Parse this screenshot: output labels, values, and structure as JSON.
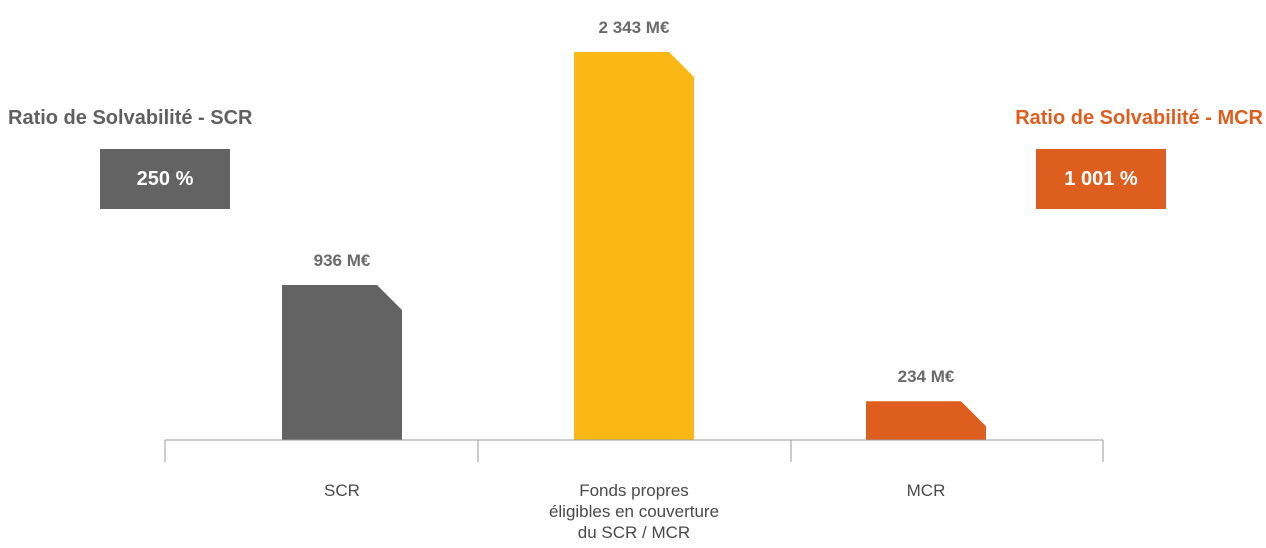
{
  "chart_data": {
    "type": "bar",
    "categories": [
      "SCR",
      "Fonds propres éligibles en couverture du SCR / MCR",
      "MCR"
    ],
    "category_lines": [
      [
        "SCR"
      ],
      [
        "Fonds propres",
        "éligibles en couverture",
        "du SCR / MCR"
      ],
      [
        "MCR"
      ]
    ],
    "values": [
      936,
      2343,
      234
    ],
    "value_labels": [
      "936 M€",
      "2 343 M€",
      "234 M€"
    ],
    "unit": "M€",
    "colors": [
      "#636363",
      "#FBB716",
      "#DD5E1F"
    ],
    "ylim": [
      0,
      2343
    ],
    "grid": false,
    "legend": "none"
  },
  "ratios": {
    "scr": {
      "title": "Ratio de Solvabilité - SCR",
      "value": "250 %",
      "color": "#636363"
    },
    "mcr": {
      "title": "Ratio de Solvabilité - MCR",
      "value": "1 001 %",
      "color": "#DD5E1F"
    }
  }
}
